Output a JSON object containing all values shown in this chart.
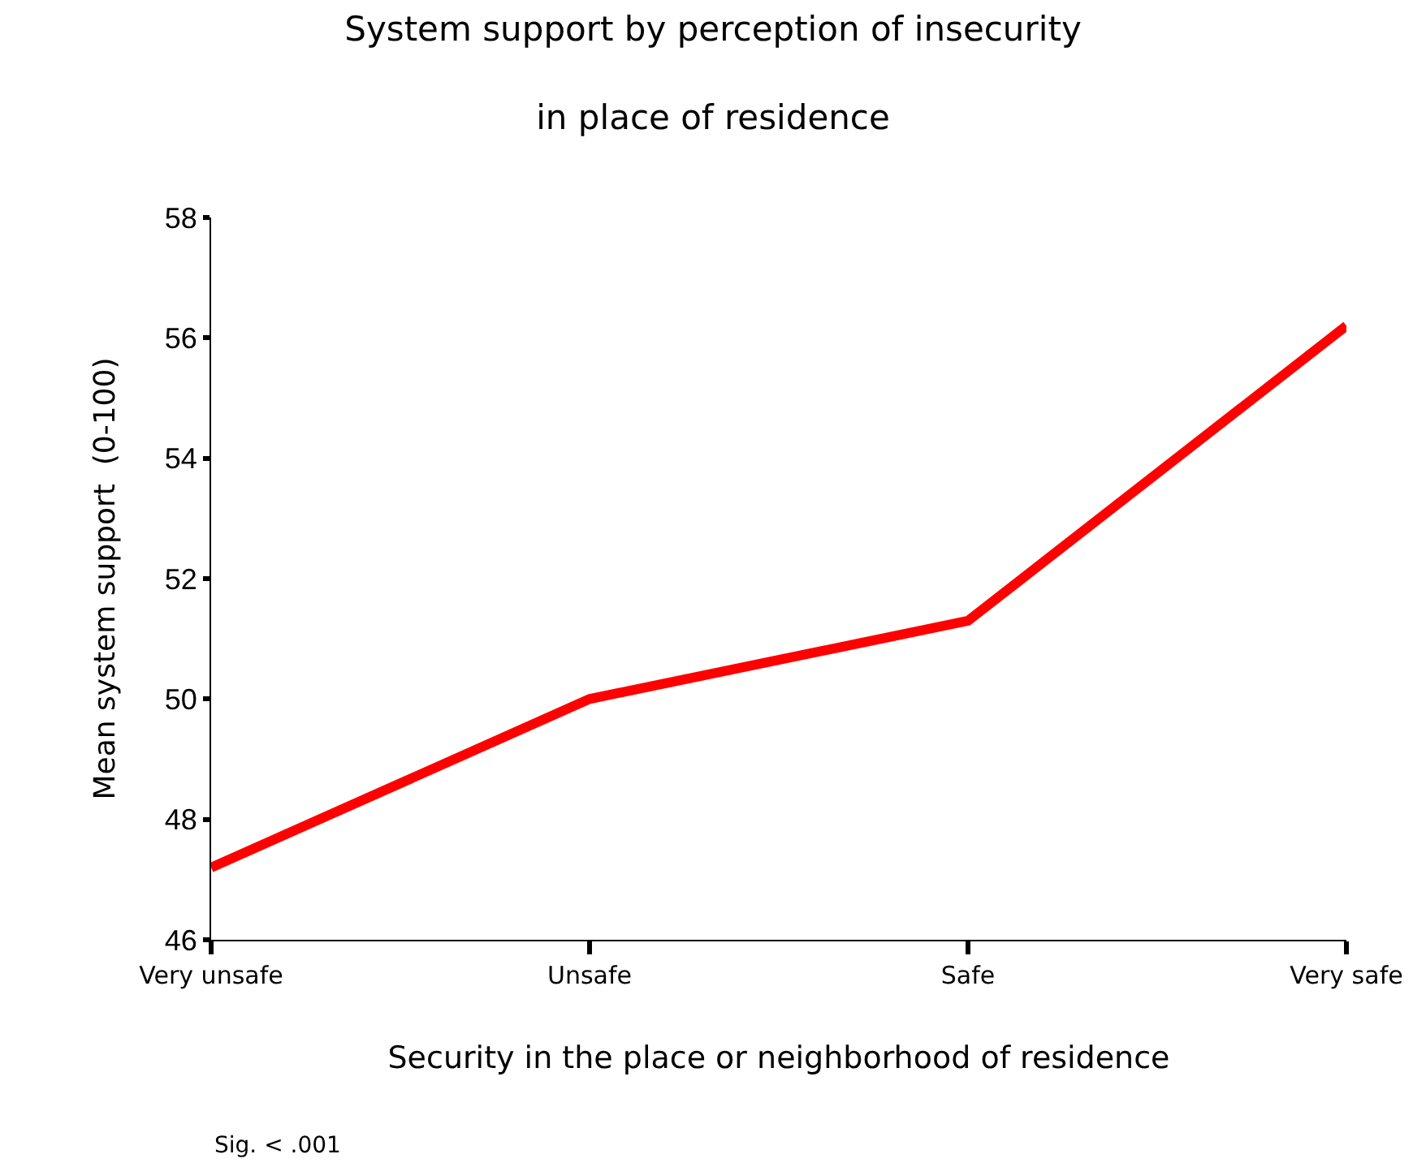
{
  "chart_data": {
    "type": "line",
    "title": "System support by perception of insecurity\nin place of residence",
    "xlabel": "Security in the place or neighborhood of residence",
    "ylabel": "Mean system support  (0-100)",
    "categories": [
      "Very unsafe",
      "Unsafe",
      "Safe",
      "Very safe"
    ],
    "series": [
      {
        "color": "#ff0000",
        "values": [
          47.2,
          50.0,
          51.3,
          56.2
        ]
      }
    ],
    "ylim": [
      46,
      58
    ],
    "yticks": [
      46,
      48,
      50,
      52,
      54,
      56,
      58
    ],
    "legend": false,
    "marker": "none",
    "line_style": "solid",
    "annotations": [
      "Sig. < .001"
    ]
  }
}
